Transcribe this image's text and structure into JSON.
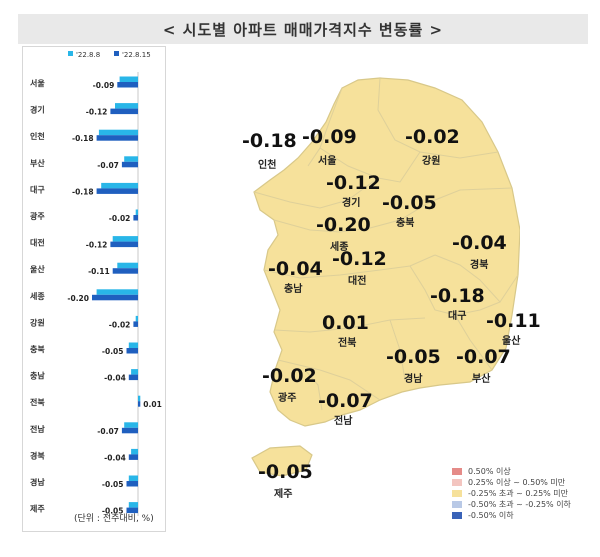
{
  "title": "< 시도별 아파트 매매가격지수 변동률 >",
  "unit_note": "(단위 : 전주대비, %)",
  "chart_data": {
    "type": "bar",
    "orientation": "horizontal",
    "categories": [
      "서울",
      "경기",
      "인천",
      "부산",
      "대구",
      "광주",
      "대전",
      "울산",
      "세종",
      "강원",
      "충북",
      "충남",
      "전북",
      "전남",
      "경북",
      "경남",
      "제주"
    ],
    "series": [
      {
        "name": "'22.8.8",
        "color": "#29b6e8",
        "values": [
          -0.08,
          -0.1,
          -0.17,
          -0.06,
          -0.16,
          -0.01,
          -0.11,
          -0.09,
          -0.18,
          -0.01,
          -0.04,
          -0.03,
          0.01,
          -0.06,
          -0.03,
          -0.04,
          -0.04
        ]
      },
      {
        "name": "'22.8.15",
        "color": "#1f5fbf",
        "values": [
          -0.09,
          -0.12,
          -0.18,
          -0.07,
          -0.18,
          -0.02,
          -0.12,
          -0.11,
          -0.2,
          -0.02,
          -0.05,
          -0.04,
          0.01,
          -0.07,
          -0.04,
          -0.05,
          -0.05
        ]
      }
    ],
    "data_labels": [
      "-0.09",
      "-0.12",
      "-0.18",
      "-0.07",
      "-0.18",
      "-0.02",
      "-0.12",
      "-0.11",
      "-0.20",
      "-0.02",
      "-0.05",
      "-0.04",
      "0.01",
      "-0.07",
      "-0.04",
      "-0.05",
      "-0.05"
    ],
    "legend_position": "top"
  },
  "map": {
    "regions": [
      {
        "name": "인천",
        "value": "-0.18"
      },
      {
        "name": "서울",
        "value": "-0.09"
      },
      {
        "name": "강원",
        "value": "-0.02"
      },
      {
        "name": "경기",
        "value": "-0.12"
      },
      {
        "name": "충북",
        "value": "-0.05"
      },
      {
        "name": "세종",
        "value": "-0.20"
      },
      {
        "name": "충남",
        "value": "-0.04"
      },
      {
        "name": "대전",
        "value": "-0.12"
      },
      {
        "name": "경북",
        "value": "-0.04"
      },
      {
        "name": "대구",
        "value": "-0.18"
      },
      {
        "name": "울산",
        "value": "-0.11"
      },
      {
        "name": "전북",
        "value": "0.01"
      },
      {
        "name": "경남",
        "value": "-0.05"
      },
      {
        "name": "부산",
        "value": "-0.07"
      },
      {
        "name": "광주",
        "value": "-0.02"
      },
      {
        "name": "전남",
        "value": "-0.07"
      },
      {
        "name": "제주",
        "value": "-0.05"
      }
    ],
    "fill_color": "#f6e19b",
    "legend": [
      {
        "label": "0.50% 이상",
        "color": "#e58b88"
      },
      {
        "label": "0.25% 이상 ~ 0.50% 미만",
        "color": "#f3c5c0"
      },
      {
        "label": "-0.25% 초과 ~ 0.25% 미만",
        "color": "#f6e19b"
      },
      {
        "label": "-0.50% 초과 ~ -0.25% 이하",
        "color": "#b9c9e6"
      },
      {
        "label": "-0.50% 이하",
        "color": "#3a63b8"
      }
    ]
  }
}
